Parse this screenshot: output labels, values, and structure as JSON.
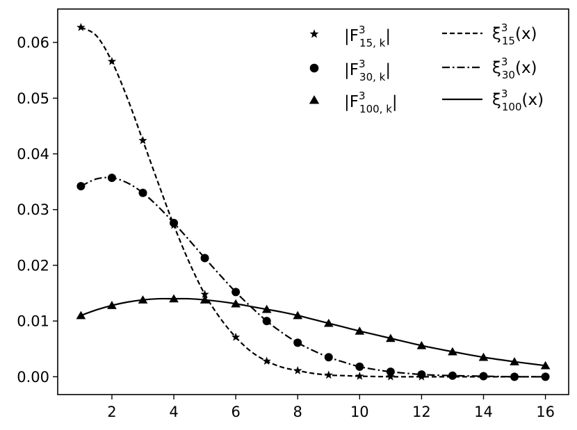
{
  "chart_data": {
    "type": "line",
    "title": "",
    "xlabel": "",
    "ylabel": "",
    "xlim": [
      0.25,
      16.75
    ],
    "ylim": [
      -0.0032,
      0.066
    ],
    "xticks": [
      2,
      4,
      6,
      8,
      10,
      12,
      14,
      16
    ],
    "yticks": [
      0.0,
      0.01,
      0.02,
      0.03,
      0.04,
      0.05,
      0.06
    ],
    "ytick_labels": [
      "0.00",
      "0.01",
      "0.02",
      "0.03",
      "0.04",
      "0.05",
      "0.06"
    ],
    "grid": false,
    "legend_placement": "top-right",
    "marker_series": [
      {
        "name_base": "|F",
        "sup": "3",
        "sub": "15, k",
        "name_end": "|",
        "marker": "star",
        "x": [
          1,
          2,
          3,
          4,
          5,
          6,
          7,
          8,
          9,
          10,
          11,
          12
        ],
        "y": [
          0.0627,
          0.0566,
          0.0424,
          0.0272,
          0.0148,
          0.0071,
          0.0028,
          0.0011,
          0.0003,
          0.0001,
          0.0,
          0.0
        ]
      },
      {
        "name_base": "|F",
        "sup": "3",
        "sub": "30, k",
        "name_end": "|",
        "marker": "circle",
        "x": [
          1,
          2,
          3,
          4,
          5,
          6,
          7,
          8,
          9,
          10,
          11,
          12,
          13,
          14,
          15,
          16
        ],
        "y": [
          0.0342,
          0.0357,
          0.033,
          0.0276,
          0.0213,
          0.0152,
          0.01,
          0.0061,
          0.0035,
          0.0018,
          0.0009,
          0.0004,
          0.0002,
          0.0001,
          0.0,
          0.0
        ]
      },
      {
        "name_base": "|F",
        "sup": "3",
        "sub": "100, k",
        "name_end": "|",
        "marker": "triangle",
        "x": [
          1,
          2,
          3,
          4,
          5,
          6,
          7,
          8,
          9,
          10,
          11,
          12,
          13,
          14,
          15,
          16
        ],
        "y": [
          0.011,
          0.0128,
          0.0138,
          0.014,
          0.0138,
          0.0131,
          0.0121,
          0.011,
          0.0096,
          0.0082,
          0.0069,
          0.0056,
          0.0045,
          0.0035,
          0.0027,
          0.002
        ]
      }
    ],
    "line_series": [
      {
        "name_base": "ξ",
        "sup": "3",
        "sub": "15",
        "name_end": "(x)",
        "dash": "dashed",
        "x": [
          1,
          1.5,
          2,
          2.5,
          3,
          3.5,
          4,
          4.5,
          5,
          5.5,
          6,
          6.5,
          7,
          7.5,
          8,
          8.5,
          9,
          9.5,
          10,
          11,
          12,
          13,
          14,
          15,
          16
        ],
        "y": [
          0.0627,
          0.0612,
          0.0566,
          0.05,
          0.0424,
          0.0347,
          0.0272,
          0.0205,
          0.0148,
          0.0105,
          0.0071,
          0.0045,
          0.0028,
          0.0017,
          0.0011,
          0.0006,
          0.0003,
          0.0002,
          0.0001,
          0.0,
          0.0,
          0.0,
          0.0,
          0.0,
          0.0
        ]
      },
      {
        "name_base": "ξ",
        "sup": "3",
        "sub": "30",
        "name_end": "(x)",
        "dash": "dashdot",
        "x": [
          1,
          1.5,
          2,
          2.5,
          3,
          3.5,
          4,
          4.5,
          5,
          5.5,
          6,
          6.5,
          7,
          7.5,
          8,
          8.5,
          9,
          9.5,
          10,
          10.5,
          11,
          12,
          13,
          14,
          15,
          16
        ],
        "y": [
          0.0342,
          0.0355,
          0.0357,
          0.0348,
          0.033,
          0.0305,
          0.0276,
          0.0245,
          0.0213,
          0.0182,
          0.0152,
          0.0125,
          0.01,
          0.0079,
          0.0061,
          0.0047,
          0.0035,
          0.0026,
          0.0018,
          0.0013,
          0.0009,
          0.0004,
          0.0002,
          0.0001,
          0.0,
          0.0
        ]
      },
      {
        "name_base": "ξ",
        "sup": "3",
        "sub": "100",
        "name_end": "(x)",
        "dash": "solid",
        "x": [
          1,
          1.5,
          2,
          2.5,
          3,
          3.5,
          4,
          4.5,
          5,
          5.5,
          6,
          6.5,
          7,
          7.5,
          8,
          8.5,
          9,
          9.5,
          10,
          11,
          12,
          13,
          14,
          15,
          16
        ],
        "y": [
          0.011,
          0.012,
          0.0128,
          0.0134,
          0.0138,
          0.014,
          0.014,
          0.014,
          0.0138,
          0.0135,
          0.0131,
          0.0126,
          0.0121,
          0.0116,
          0.011,
          0.0103,
          0.0096,
          0.0089,
          0.0082,
          0.0069,
          0.0056,
          0.0045,
          0.0035,
          0.0027,
          0.002
        ]
      }
    ]
  }
}
